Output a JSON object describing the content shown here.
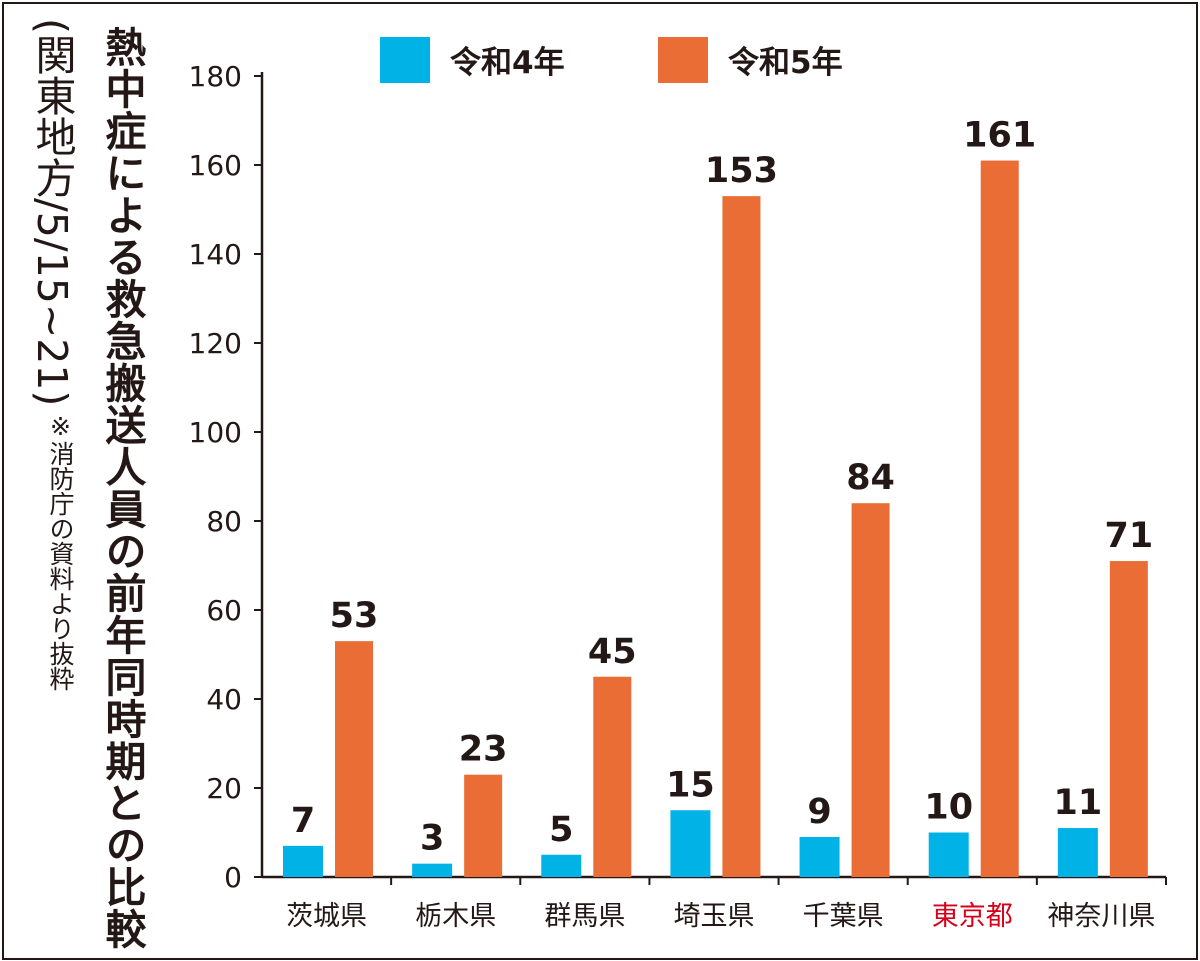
{
  "chart_data": {
    "type": "bar",
    "title": "熱中症による救急搬送人員の前年同時期との比較",
    "subtitle": "(関東地方/5/15~21)",
    "note": "※消防庁の資料より抜粋",
    "categories": [
      "茨城県",
      "栃木県",
      "群馬県",
      "埼玉県",
      "千葉県",
      "東京都",
      "神奈川県"
    ],
    "highlight_category": "東京都",
    "series": [
      {
        "name": "令和4年",
        "color": "#00b2e5",
        "values": [
          7,
          3,
          5,
          15,
          9,
          10,
          11
        ]
      },
      {
        "name": "令和5年",
        "color": "#ea6d35",
        "values": [
          53,
          23,
          45,
          153,
          84,
          161,
          71
        ]
      }
    ],
    "ylim": [
      0,
      180
    ],
    "yticks": [
      0,
      20,
      40,
      60,
      80,
      100,
      120,
      140,
      160,
      180
    ],
    "xlabel": "",
    "ylabel": "",
    "grid": false,
    "legend": "top-center",
    "colors": {
      "axis": "#231815",
      "highlight_text": "#d7001a"
    }
  }
}
